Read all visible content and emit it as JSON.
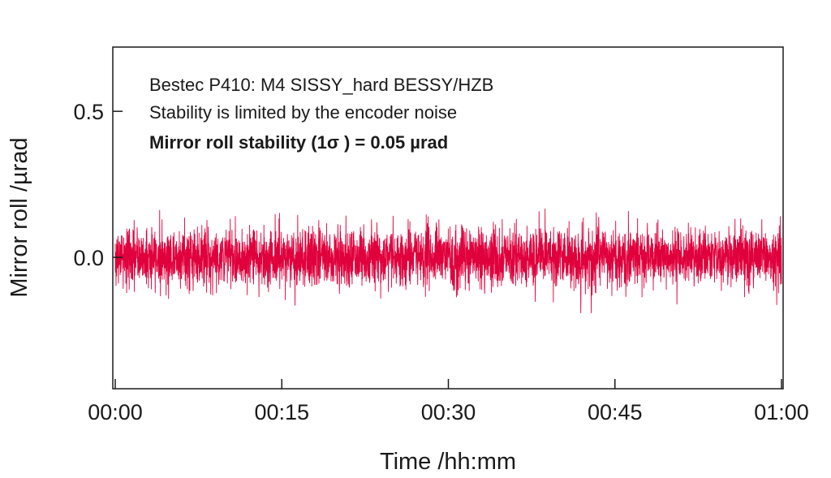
{
  "chart_data": {
    "type": "line",
    "xlabel": "Time /hh:mm",
    "ylabel": "Mirror roll /µrad",
    "xlim": [
      0,
      60
    ],
    "ylim": [
      -0.45,
      0.72
    ],
    "x_tick_labels": [
      "00:00",
      "00:15",
      "00:30",
      "00:45",
      "01:00"
    ],
    "x_tick_values": [
      0,
      15,
      30,
      45,
      60
    ],
    "y_tick_labels": [
      "0.0",
      "0.5"
    ],
    "y_tick_values": [
      0.0,
      0.5
    ],
    "annotations": [
      "Bestec P410: M4 SISSY_hard BESSY/HZB",
      "Stability is limited by the encoder noise",
      "Mirror roll stability (1σ ) = 0.05 µrad"
    ],
    "series": [
      {
        "color": "#e0003c",
        "mean": 0.0,
        "sigma": 0.05,
        "envelope_min": -0.19,
        "envelope_max": 0.2
      }
    ],
    "grid": false
  }
}
